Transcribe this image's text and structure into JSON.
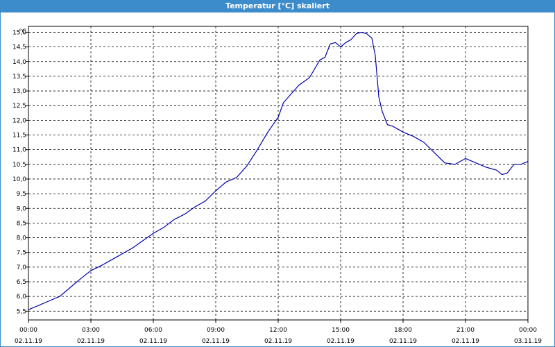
{
  "window": {
    "title": "Temperatur [°C] skaliert",
    "title_color": "#3c8ccc"
  },
  "chart_data": {
    "type": "line",
    "title": "Temperatur [°C] skaliert",
    "ylabel": "°C",
    "xlabel": "",
    "ylim": [
      5.2,
      15.2
    ],
    "xlim_hours": [
      0,
      24
    ],
    "grid": true,
    "line_color": "#0000aa",
    "y_ticks": [
      "5,5",
      "6,0",
      "6,5",
      "7,0",
      "7,5",
      "8,0",
      "8,5",
      "9,0",
      "9,5",
      "10,0",
      "10,5",
      "11,0",
      "11,5",
      "12,0",
      "12,5",
      "13,0",
      "13,5",
      "14,0",
      "14,5",
      "15,0"
    ],
    "x_ticks": [
      {
        "time": "00:00",
        "date": "02.11.19"
      },
      {
        "time": "03:00",
        "date": "02.11.19"
      },
      {
        "time": "06:00",
        "date": "02.11.19"
      },
      {
        "time": "09:00",
        "date": "02.11.19"
      },
      {
        "time": "12:00",
        "date": "02.11.19"
      },
      {
        "time": "15:00",
        "date": "02.11.19"
      },
      {
        "time": "18:00",
        "date": "02.11.19"
      },
      {
        "time": "21:00",
        "date": "02.11.19"
      },
      {
        "time": "00:00",
        "date": "03.11.19"
      }
    ],
    "series": [
      {
        "points": [
          [
            "02.11.19 00:00",
            5.55
          ],
          [
            "02.11.19 00:30",
            5.7
          ],
          [
            "02.11.19 01:00",
            5.85
          ],
          [
            "02.11.19 01:30",
            6.0
          ],
          [
            "02.11.19 02:00",
            6.3
          ],
          [
            "02.11.19 02:30",
            6.6
          ],
          [
            "02.11.19 03:00",
            6.88
          ],
          [
            "02.11.19 03:30",
            7.05
          ],
          [
            "02.11.19 04:00",
            7.25
          ],
          [
            "02.11.19 04:30",
            7.45
          ],
          [
            "02.11.19 05:00",
            7.65
          ],
          [
            "02.11.19 05:30",
            7.9
          ],
          [
            "02.11.19 06:00",
            8.15
          ],
          [
            "02.11.19 06:30",
            8.35
          ],
          [
            "02.11.19 07:00",
            8.62
          ],
          [
            "02.11.19 07:30",
            8.8
          ],
          [
            "02.11.19 08:00",
            9.05
          ],
          [
            "02.11.19 08:30",
            9.25
          ],
          [
            "02.11.19 09:00",
            9.6
          ],
          [
            "02.11.19 09:30",
            9.9
          ],
          [
            "02.11.19 10:00",
            10.05
          ],
          [
            "02.11.19 10:30",
            10.45
          ],
          [
            "02.11.19 11:00",
            11.0
          ],
          [
            "02.11.19 11:30",
            11.6
          ],
          [
            "02.11.19 12:00",
            12.1
          ],
          [
            "02.11.19 12:15",
            12.6
          ],
          [
            "02.11.19 12:30",
            12.8
          ],
          [
            "02.11.19 13:00",
            13.2
          ],
          [
            "02.11.19 13:30",
            13.45
          ],
          [
            "02.11.19 14:00",
            14.05
          ],
          [
            "02.11.19 14:15",
            14.15
          ],
          [
            "02.11.19 14:30",
            14.6
          ],
          [
            "02.11.19 14:45",
            14.65
          ],
          [
            "02.11.19 15:00",
            14.5
          ],
          [
            "02.11.19 15:15",
            14.65
          ],
          [
            "02.11.19 15:30",
            14.75
          ],
          [
            "02.11.19 15:45",
            14.95
          ],
          [
            "02.11.19 16:00",
            15.0
          ],
          [
            "02.11.19 16:15",
            14.95
          ],
          [
            "02.11.19 16:30",
            14.8
          ],
          [
            "02.11.19 16:40",
            14.2
          ],
          [
            "02.11.19 16:50",
            12.8
          ],
          [
            "02.11.19 17:00",
            12.3
          ],
          [
            "02.11.19 17:15",
            11.85
          ],
          [
            "02.11.19 17:30",
            11.8
          ],
          [
            "02.11.19 18:00",
            11.6
          ],
          [
            "02.11.19 18:30",
            11.45
          ],
          [
            "02.11.19 19:00",
            11.25
          ],
          [
            "02.11.19 19:30",
            10.9
          ],
          [
            "02.11.19 20:00",
            10.55
          ],
          [
            "02.11.19 20:30",
            10.5
          ],
          [
            "02.11.19 21:00",
            10.7
          ],
          [
            "02.11.19 21:30",
            10.55
          ],
          [
            "02.11.19 22:00",
            10.4
          ],
          [
            "02.11.19 22:30",
            10.3
          ],
          [
            "02.11.19 22:45",
            10.15
          ],
          [
            "02.11.19 23:00",
            10.2
          ],
          [
            "02.11.19 23:20",
            10.5
          ],
          [
            "02.11.19 23:40",
            10.5
          ],
          [
            "03.11.19 00:00",
            10.6
          ]
        ]
      }
    ]
  }
}
